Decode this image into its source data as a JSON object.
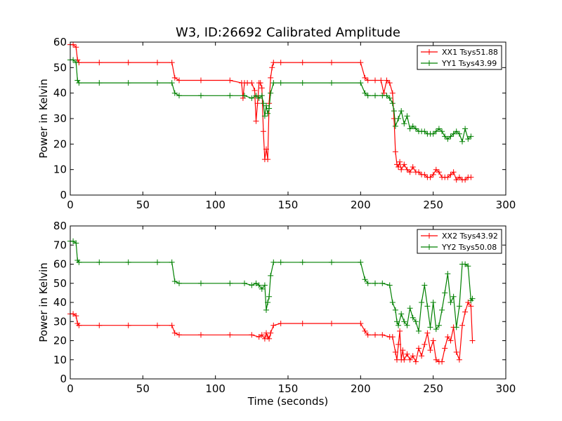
{
  "chart_data": [
    {
      "type": "line",
      "title": "W3, ID:26692 Calibrated Amplitude",
      "xlabel": "",
      "ylabel": "Power in Kelvin",
      "xlim": [
        0,
        300
      ],
      "ylim": [
        0,
        60
      ],
      "xticks": [
        "0",
        "50",
        "100",
        "150",
        "200",
        "250",
        "300"
      ],
      "yticks": [
        "0",
        "10",
        "20",
        "30",
        "40",
        "50",
        "60"
      ],
      "legend_position": "top-right",
      "grid": false,
      "series": [
        {
          "name": "XX1 Tsys51.88",
          "color": "#ff0000",
          "x": [
            0,
            2,
            4,
            5,
            6,
            20,
            40,
            60,
            70,
            72,
            75,
            90,
            110,
            118,
            119,
            120,
            122,
            125,
            127,
            128,
            129,
            130,
            131,
            132,
            133,
            134,
            135,
            136,
            137,
            138,
            139,
            140,
            145,
            160,
            180,
            200,
            203,
            205,
            210,
            214,
            216,
            218,
            220,
            222,
            223,
            224,
            225,
            226,
            227,
            228,
            230,
            232,
            234,
            236,
            238,
            240,
            242,
            244,
            246,
            248,
            250,
            252,
            254,
            256,
            258,
            260,
            262,
            264,
            266,
            268,
            270,
            272,
            274,
            276
          ],
          "y": [
            59,
            59,
            58,
            53,
            52,
            52,
            52,
            52,
            52,
            46,
            45,
            45,
            45,
            44,
            38,
            44,
            44,
            44,
            41,
            29,
            36,
            44,
            44,
            42,
            25,
            14,
            18,
            14,
            36,
            46,
            50,
            52,
            52,
            52,
            52,
            52,
            46,
            45,
            45,
            45,
            40,
            45,
            44,
            40,
            30,
            17,
            12,
            11,
            13,
            10,
            12,
            10,
            9,
            11,
            9,
            9,
            8,
            8,
            7,
            7,
            8,
            10,
            9,
            7,
            7,
            7,
            8,
            9,
            6,
            7,
            6,
            6,
            7,
            7
          ]
        },
        {
          "name": "YY1 Tsys43.99",
          "color": "#008000",
          "x": [
            0,
            2,
            4,
            5,
            6,
            20,
            40,
            60,
            70,
            72,
            75,
            90,
            110,
            120,
            125,
            128,
            130,
            132,
            133,
            134,
            135,
            136,
            137,
            138,
            140,
            145,
            160,
            180,
            200,
            203,
            205,
            210,
            215,
            218,
            220,
            222,
            223,
            224,
            226,
            228,
            230,
            232,
            234,
            236,
            238,
            240,
            242,
            244,
            246,
            248,
            250,
            252,
            254,
            256,
            258,
            260,
            262,
            264,
            266,
            268,
            270,
            272,
            274,
            276
          ],
          "y": [
            53,
            53,
            52,
            45,
            44,
            44,
            44,
            44,
            44,
            40,
            39,
            39,
            39,
            39,
            38,
            39,
            38,
            39,
            36,
            31,
            35,
            32,
            34,
            40,
            44,
            44,
            44,
            44,
            44,
            40,
            39,
            39,
            39,
            39,
            38,
            36,
            33,
            27,
            30,
            33,
            28,
            31,
            26,
            27,
            26,
            25,
            25,
            25,
            24,
            24,
            24,
            25,
            26,
            25,
            23,
            22,
            23,
            24,
            25,
            24,
            21,
            26,
            22,
            23
          ]
        }
      ]
    },
    {
      "type": "line",
      "title": "",
      "xlabel": "Time (seconds)",
      "ylabel": "Power in Kelvin",
      "xlim": [
        0,
        300
      ],
      "ylim": [
        0,
        80
      ],
      "xticks": [
        "0",
        "50",
        "100",
        "150",
        "200",
        "250",
        "300"
      ],
      "yticks": [
        "0",
        "10",
        "20",
        "30",
        "40",
        "50",
        "60",
        "70",
        "80"
      ],
      "legend_position": "top-right",
      "grid": false,
      "series": [
        {
          "name": "XX2 Tsys43.92",
          "color": "#ff0000",
          "x": [
            0,
            2,
            4,
            5,
            6,
            20,
            40,
            60,
            70,
            72,
            75,
            90,
            110,
            125,
            130,
            132,
            134,
            135,
            136,
            137,
            138,
            140,
            145,
            160,
            180,
            200,
            203,
            205,
            210,
            215,
            220,
            222,
            224,
            225,
            226,
            227,
            228,
            229,
            230,
            232,
            234,
            236,
            238,
            240,
            242,
            244,
            246,
            248,
            250,
            252,
            254,
            256,
            258,
            260,
            262,
            264,
            266,
            268,
            270,
            272,
            274,
            276,
            277
          ],
          "y": [
            34,
            34,
            33,
            29,
            28,
            28,
            28,
            28,
            28,
            24,
            23,
            23,
            23,
            23,
            22,
            23,
            21,
            24,
            22,
            21,
            24,
            28,
            29,
            29,
            29,
            29,
            25,
            23,
            23,
            23,
            22,
            22,
            14,
            10,
            18,
            25,
            10,
            15,
            10,
            13,
            10,
            12,
            9,
            16,
            12,
            18,
            24,
            15,
            20,
            10,
            9,
            9,
            16,
            22,
            20,
            27,
            14,
            10,
            28,
            35,
            40,
            38,
            20
          ]
        },
        {
          "name": "YY2 Tsys50.08",
          "color": "#008000",
          "x": [
            0,
            2,
            4,
            5,
            6,
            20,
            40,
            60,
            70,
            72,
            75,
            90,
            110,
            120,
            125,
            128,
            130,
            132,
            134,
            135,
            136,
            137,
            138,
            140,
            145,
            160,
            180,
            200,
            203,
            205,
            210,
            215,
            220,
            222,
            224,
            225,
            226,
            228,
            230,
            232,
            234,
            236,
            238,
            240,
            242,
            244,
            246,
            248,
            250,
            252,
            254,
            256,
            258,
            260,
            262,
            264,
            266,
            268,
            270,
            272,
            274,
            276,
            277
          ],
          "y": [
            72,
            72,
            71,
            62,
            61,
            61,
            61,
            61,
            61,
            51,
            50,
            50,
            50,
            50,
            49,
            50,
            49,
            47,
            49,
            36,
            40,
            43,
            54,
            61,
            61,
            61,
            61,
            61,
            52,
            50,
            50,
            50,
            49,
            40,
            36,
            30,
            28,
            34,
            30,
            28,
            37,
            32,
            30,
            25,
            40,
            49,
            38,
            27,
            40,
            26,
            28,
            36,
            45,
            55,
            40,
            43,
            27,
            38,
            60,
            60,
            59,
            41,
            42
          ]
        }
      ]
    }
  ]
}
